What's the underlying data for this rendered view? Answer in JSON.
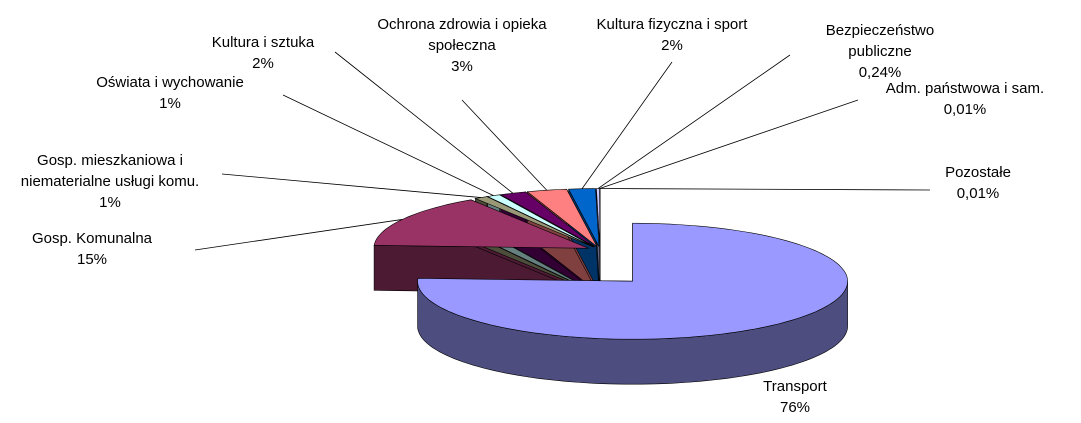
{
  "chart_data": {
    "type": "pie3d",
    "categories": [
      "Transport",
      "Gosp. Komunalna",
      "Gosp. mieszkaniowa i niematerialne usługi komu.",
      "Oświata i wychowanie",
      "Kultura i sztuka",
      "Ochrona zdrowia i opieka społeczna",
      "Kultura fizyczna i sport",
      "Bezpieczeństwo publiczne",
      "Adm. państwowa i sam.",
      "Pozostałe"
    ],
    "values": [
      76,
      15,
      1,
      1,
      2,
      3,
      2,
      0.24,
      0.01,
      0.01
    ],
    "value_labels": [
      "76%",
      "15%",
      "1%",
      "1%",
      "2%",
      "3%",
      "2%",
      "0,24%",
      "0,01%",
      "0,01%"
    ],
    "colors": [
      "#9999ff",
      "#993366",
      "#999977",
      "#ccffff",
      "#660066",
      "#ff8080",
      "#0066cc",
      "#ccccff",
      "#000080",
      "#ff00ff"
    ]
  }
}
